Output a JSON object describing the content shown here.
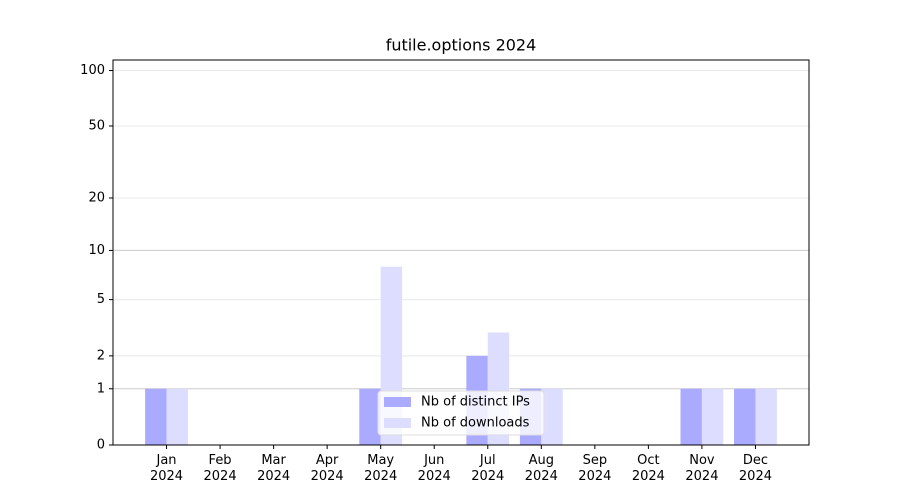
{
  "chart_data": {
    "type": "bar",
    "title": "futile.options 2024",
    "categories": [
      "Jan\n2024",
      "Feb\n2024",
      "Mar\n2024",
      "Apr\n2024",
      "May\n2024",
      "Jun\n2024",
      "Jul\n2024",
      "Aug\n2024",
      "Sep\n2024",
      "Oct\n2024",
      "Nov\n2024",
      "Dec\n2024"
    ],
    "series": [
      {
        "name": "Nb of distinct IPs",
        "color": "#aaaaff",
        "values": [
          1,
          0,
          0,
          0,
          1,
          0,
          2,
          1,
          0,
          0,
          1,
          1
        ]
      },
      {
        "name": "Nb of downloads",
        "color": "#ddddff",
        "values": [
          1,
          0,
          0,
          0,
          8,
          0,
          3,
          1,
          0,
          0,
          1,
          1
        ]
      }
    ],
    "y_scale": "log1p",
    "ylim": [
      0,
      114
    ],
    "yticks": [
      0,
      1,
      2,
      5,
      10,
      20,
      50,
      100
    ],
    "grid": true,
    "legend": "lower center"
  }
}
